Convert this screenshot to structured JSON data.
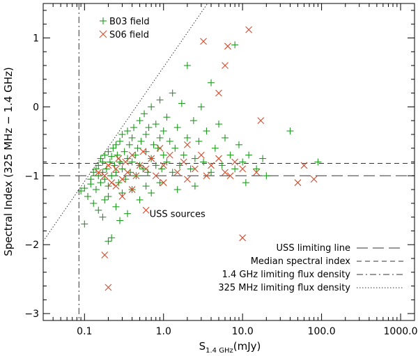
{
  "chart_data": {
    "type": "scatter",
    "x_scale": "log",
    "xlim": [
      0.03,
      1500
    ],
    "ylim": [
      -3.1,
      1.5
    ],
    "x_ticks": [
      {
        "value": 0.1,
        "label": "0.1"
      },
      {
        "value": 1,
        "label": "1.0"
      },
      {
        "value": 10,
        "label": "10.0"
      },
      {
        "value": 100,
        "label": "100.0"
      },
      {
        "value": 1000,
        "label": "1000.0"
      }
    ],
    "y_ticks": [
      {
        "value": -3,
        "label": "−3"
      },
      {
        "value": -2,
        "label": "−2"
      },
      {
        "value": -1,
        "label": "−1"
      },
      {
        "value": 0,
        "label": "0"
      },
      {
        "value": 1,
        "label": "1"
      }
    ],
    "xlabel_main": "S",
    "xlabel_sub": "1.4 GHz",
    "xlabel_unit": "(mJy)",
    "ylabel": "Spectral Index (325 MHz − 1.4 GHz)",
    "grid": false,
    "legend_placement": "top-left",
    "series": [
      {
        "name": "B03 field",
        "marker": "plus",
        "color": "#1e9a1e",
        "points": [
          [
            0.09,
            -1.22
          ],
          [
            0.1,
            -1.18
          ],
          [
            0.11,
            -1.3
          ],
          [
            0.12,
            -1.12
          ],
          [
            0.12,
            -1.05
          ],
          [
            0.13,
            -0.95
          ],
          [
            0.14,
            -0.9
          ],
          [
            0.14,
            -1.2
          ],
          [
            0.15,
            -1.0
          ],
          [
            0.15,
            -0.85
          ],
          [
            0.16,
            -0.75
          ],
          [
            0.16,
            -1.1
          ],
          [
            0.17,
            -0.8
          ],
          [
            0.17,
            -0.95
          ],
          [
            0.18,
            -0.7
          ],
          [
            0.18,
            -1.05
          ],
          [
            0.19,
            -0.9
          ],
          [
            0.2,
            -0.65
          ],
          [
            0.2,
            -1.15
          ],
          [
            0.21,
            -0.8
          ],
          [
            0.22,
            -0.72
          ],
          [
            0.22,
            -1.0
          ],
          [
            0.23,
            -0.6
          ],
          [
            0.24,
            -0.85
          ],
          [
            0.25,
            -0.55
          ],
          [
            0.25,
            -0.95
          ],
          [
            0.26,
            -0.7
          ],
          [
            0.27,
            -1.1
          ],
          [
            0.28,
            -0.5
          ],
          [
            0.28,
            -0.8
          ],
          [
            0.3,
            -0.4
          ],
          [
            0.3,
            -0.9
          ],
          [
            0.32,
            -0.65
          ],
          [
            0.33,
            -1.05
          ],
          [
            0.35,
            -0.35
          ],
          [
            0.35,
            -0.75
          ],
          [
            0.37,
            -0.55
          ],
          [
            0.38,
            -0.95
          ],
          [
            0.4,
            -0.45
          ],
          [
            0.4,
            -0.8
          ],
          [
            0.42,
            -0.3
          ],
          [
            0.44,
            -0.7
          ],
          [
            0.45,
            -1.0
          ],
          [
            0.47,
            -0.6
          ],
          [
            0.5,
            -0.2
          ],
          [
            0.5,
            -0.85
          ],
          [
            0.52,
            -0.5
          ],
          [
            0.55,
            -0.9
          ],
          [
            0.57,
            -0.1
          ],
          [
            0.6,
            -0.65
          ],
          [
            0.6,
            -0.4
          ],
          [
            0.63,
            -0.95
          ],
          [
            0.65,
            -0.3
          ],
          [
            0.7,
            -0.75
          ],
          [
            0.7,
            0.0
          ],
          [
            0.75,
            -0.55
          ],
          [
            0.8,
            -0.85
          ],
          [
            0.8,
            -0.25
          ],
          [
            0.85,
            -0.6
          ],
          [
            0.9,
            0.1
          ],
          [
            0.9,
            -0.45
          ],
          [
            0.95,
            -0.9
          ],
          [
            1.0,
            -0.35
          ],
          [
            1.0,
            -0.7
          ],
          [
            1.1,
            -0.15
          ],
          [
            1.1,
            -0.8
          ],
          [
            1.2,
            -0.5
          ],
          [
            1.3,
            0.2
          ],
          [
            1.3,
            -0.95
          ],
          [
            1.4,
            -0.6
          ],
          [
            1.5,
            -0.3
          ],
          [
            1.6,
            -0.85
          ],
          [
            1.7,
            0.05
          ],
          [
            1.8,
            -0.7
          ],
          [
            2.0,
            -0.45
          ],
          [
            2.0,
            0.6
          ],
          [
            2.2,
            -0.9
          ],
          [
            2.4,
            -0.2
          ],
          [
            2.5,
            -0.75
          ],
          [
            2.8,
            -0.5
          ],
          [
            3.0,
            0.0
          ],
          [
            3.2,
            -0.8
          ],
          [
            3.5,
            -0.35
          ],
          [
            4.0,
            -0.95
          ],
          [
            4.0,
            0.35
          ],
          [
            4.5,
            -0.6
          ],
          [
            5.0,
            -0.25
          ],
          [
            5.5,
            -0.85
          ],
          [
            6.0,
            -0.45
          ],
          [
            7.0,
            -0.7
          ],
          [
            8.0,
            0.9
          ],
          [
            8.0,
            -0.9
          ],
          [
            9.0,
            -0.55
          ],
          [
            10.0,
            -0.8
          ],
          [
            11.0,
            -1.1
          ],
          [
            12.0,
            -0.7
          ],
          [
            15.0,
            -0.9
          ],
          [
            18.0,
            -0.75
          ],
          [
            20.0,
            -1.0
          ],
          [
            40.0,
            -0.35
          ],
          [
            90.0,
            -0.8
          ],
          [
            0.1,
            -1.7
          ],
          [
            0.13,
            -1.4
          ],
          [
            0.15,
            -1.5
          ],
          [
            0.17,
            -1.6
          ],
          [
            0.2,
            -1.3
          ],
          [
            0.2,
            -1.95
          ],
          [
            0.22,
            -1.9
          ],
          [
            0.25,
            -1.45
          ],
          [
            0.3,
            -1.25
          ],
          [
            0.35,
            -1.55
          ],
          [
            0.4,
            -1.2
          ],
          [
            0.5,
            -1.35
          ],
          [
            0.6,
            -1.15
          ],
          [
            0.7,
            -1.25
          ],
          [
            0.9,
            -1.1
          ],
          [
            1.5,
            -1.2
          ],
          [
            2.5,
            -1.15
          ],
          [
            0.28,
            -1.65
          ],
          [
            0.18,
            -1.35
          ]
        ]
      },
      {
        "name": "S06 field",
        "marker": "cross",
        "color": "#d64a2a",
        "points": [
          [
            0.15,
            -0.95
          ],
          [
            0.18,
            -1.0
          ],
          [
            0.2,
            -0.85
          ],
          [
            0.22,
            -1.1
          ],
          [
            0.25,
            -0.9
          ],
          [
            0.27,
            -0.75
          ],
          [
            0.3,
            -1.05
          ],
          [
            0.33,
            -0.8
          ],
          [
            0.35,
            -0.95
          ],
          [
            0.4,
            -0.7
          ],
          [
            0.45,
            -1.0
          ],
          [
            0.5,
            -0.85
          ],
          [
            0.55,
            -0.65
          ],
          [
            0.6,
            -0.9
          ],
          [
            0.7,
            -0.75
          ],
          [
            0.8,
            -1.0
          ],
          [
            0.9,
            -0.6
          ],
          [
            1.0,
            -0.85
          ],
          [
            1.2,
            -0.7
          ],
          [
            1.5,
            -0.95
          ],
          [
            1.8,
            -0.8
          ],
          [
            2.0,
            -0.55
          ],
          [
            2.5,
            -0.9
          ],
          [
            3.0,
            -0.7
          ],
          [
            3.5,
            -1.0
          ],
          [
            4.0,
            -0.85
          ],
          [
            5.0,
            -0.75
          ],
          [
            6.0,
            -0.95
          ],
          [
            8.0,
            -0.8
          ],
          [
            10.0,
            -0.9
          ],
          [
            3.2,
            0.95
          ],
          [
            6.5,
            0.88
          ],
          [
            12.0,
            1.12
          ],
          [
            6.0,
            0.6
          ],
          [
            5.0,
            0.2
          ],
          [
            17.0,
            -0.2
          ],
          [
            50.0,
            -1.1
          ],
          [
            60.0,
            -0.85
          ],
          [
            80.0,
            -1.05
          ],
          [
            10.0,
            -1.9
          ],
          [
            0.6,
            -1.5
          ],
          [
            0.18,
            -2.15
          ],
          [
            0.2,
            -2.62
          ],
          [
            0.3,
            -1.3
          ],
          [
            0.4,
            -1.2
          ],
          [
            0.25,
            -1.15
          ],
          [
            1.0,
            -1.1
          ],
          [
            2.0,
            -1.05
          ],
          [
            7.0,
            -1.0
          ],
          [
            15.0,
            -0.95
          ]
        ]
      }
    ],
    "legend_series": [
      {
        "label": "B03 field",
        "marker": "plus",
        "color": "#1e9a1e"
      },
      {
        "label": "S06 field",
        "marker": "cross",
        "color": "#d64a2a"
      }
    ],
    "reference_lines": [
      {
        "label": "USS limiting line",
        "style": "long-dash",
        "type": "horizontal",
        "y": -1.0
      },
      {
        "label": "Median spectral index",
        "style": "short-dash",
        "type": "horizontal",
        "y": -0.82
      },
      {
        "label": "1.4 GHz limiting flux density",
        "style": "dash-dot",
        "type": "vertical",
        "x": 0.085
      },
      {
        "label": "325 MHz limiting flux density",
        "style": "dotted",
        "type": "diagonal",
        "from": [
          0.03,
          -1.95
        ],
        "to": [
          3.6,
          1.5
        ]
      }
    ],
    "annotation": {
      "text": "USS sources",
      "x": 1.5,
      "y": -1.6
    }
  }
}
